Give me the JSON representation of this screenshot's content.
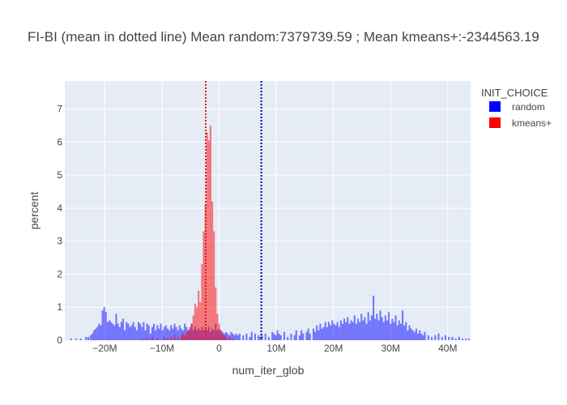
{
  "chart_data": {
    "type": "histogram",
    "title": "FI-BI (mean in dotted line) Mean random:7379739.59 ; Mean kmeans+:-2344563.19",
    "xlabel": "num_iter_glob",
    "ylabel": "percent",
    "xlim": [
      -27000000,
      44000000
    ],
    "ylim": [
      0,
      7.85
    ],
    "bin_width": 300000,
    "x_ticks": [
      {
        "value": -20000000,
        "label": "−20M"
      },
      {
        "value": -10000000,
        "label": "−10M"
      },
      {
        "value": 0,
        "label": "0"
      },
      {
        "value": 10000000,
        "label": "10M"
      },
      {
        "value": 20000000,
        "label": "20M"
      },
      {
        "value": 30000000,
        "label": "30M"
      },
      {
        "value": 40000000,
        "label": "40M"
      }
    ],
    "y_ticks": [
      {
        "value": 0,
        "label": "0"
      },
      {
        "value": 1,
        "label": "1"
      },
      {
        "value": 2,
        "label": "2"
      },
      {
        "value": 3,
        "label": "3"
      },
      {
        "value": 4,
        "label": "4"
      },
      {
        "value": 5,
        "label": "5"
      },
      {
        "value": 6,
        "label": "6"
      },
      {
        "value": 7,
        "label": "7"
      }
    ],
    "legend": {
      "title": "INIT_CHOICE",
      "placement": "top-right"
    },
    "colors": {
      "plot_background": "#e5ecf6",
      "grid": "#ffffff",
      "text": "#444444"
    },
    "series": [
      {
        "name": "random",
        "color": "#0000ff",
        "opacity": 0.5,
        "mean": 7379739.59,
        "points": [
          [
            -25900000,
            0.05
          ],
          [
            -25000000,
            0.05
          ],
          [
            -24200000,
            0.05
          ],
          [
            -23300000,
            0.1
          ],
          [
            -22900000,
            0.1
          ],
          [
            -22500000,
            0.15
          ],
          [
            -22200000,
            0.2
          ],
          [
            -21900000,
            0.3
          ],
          [
            -21600000,
            0.35
          ],
          [
            -21300000,
            0.4
          ],
          [
            -21000000,
            0.5
          ],
          [
            -20700000,
            0.45
          ],
          [
            -20400000,
            0.9
          ],
          [
            -20100000,
            1.0
          ],
          [
            -19800000,
            0.85
          ],
          [
            -19500000,
            0.55
          ],
          [
            -19200000,
            0.6
          ],
          [
            -18900000,
            0.55
          ],
          [
            -18600000,
            0.5
          ],
          [
            -18300000,
            0.45
          ],
          [
            -18000000,
            0.8
          ],
          [
            -17700000,
            0.5
          ],
          [
            -17400000,
            0.4
          ],
          [
            -17100000,
            0.55
          ],
          [
            -16800000,
            0.65
          ],
          [
            -16500000,
            0.3
          ],
          [
            -16200000,
            0.55
          ],
          [
            -15900000,
            0.5
          ],
          [
            -15600000,
            0.4
          ],
          [
            -15300000,
            0.45
          ],
          [
            -15000000,
            0.55
          ],
          [
            -14700000,
            0.4
          ],
          [
            -14400000,
            0.3
          ],
          [
            -14100000,
            0.55
          ],
          [
            -13800000,
            0.5
          ],
          [
            -13500000,
            0.4
          ],
          [
            -13200000,
            0.55
          ],
          [
            -12900000,
            0.3
          ],
          [
            -12600000,
            0.5
          ],
          [
            -12300000,
            0.45
          ],
          [
            -12000000,
            0.2
          ],
          [
            -11700000,
            0.4
          ],
          [
            -11400000,
            0.5
          ],
          [
            -11100000,
            0.3
          ],
          [
            -10800000,
            0.45
          ],
          [
            -10500000,
            0.35
          ],
          [
            -10200000,
            0.5
          ],
          [
            -9900000,
            0.3
          ],
          [
            -9600000,
            0.4
          ],
          [
            -9300000,
            0.45
          ],
          [
            -9000000,
            0.35
          ],
          [
            -8700000,
            0.3
          ],
          [
            -8400000,
            0.45
          ],
          [
            -8100000,
            0.35
          ],
          [
            -7800000,
            0.5
          ],
          [
            -7500000,
            0.4
          ],
          [
            -7200000,
            0.3
          ],
          [
            -6900000,
            0.45
          ],
          [
            -6600000,
            0.35
          ],
          [
            -6300000,
            0.3
          ],
          [
            -6000000,
            0.5
          ],
          [
            -5700000,
            0.4
          ],
          [
            -5400000,
            0.3
          ],
          [
            -5100000,
            0.35
          ],
          [
            -4800000,
            0.5
          ],
          [
            -4500000,
            0.3
          ],
          [
            -4200000,
            0.4
          ],
          [
            -3900000,
            0.3
          ],
          [
            -3600000,
            0.35
          ],
          [
            -3300000,
            0.3
          ],
          [
            -3000000,
            0.4
          ],
          [
            -2700000,
            0.3
          ],
          [
            -2400000,
            0.35
          ],
          [
            -2100000,
            0.3
          ],
          [
            -1800000,
            0.4
          ],
          [
            -1500000,
            0.25
          ],
          [
            -1200000,
            0.35
          ],
          [
            -900000,
            0.3
          ],
          [
            -600000,
            0.5
          ],
          [
            -300000,
            0.3
          ],
          [
            0,
            0.35
          ],
          [
            300000,
            0.3
          ],
          [
            600000,
            0.25
          ],
          [
            900000,
            0.2
          ],
          [
            1200000,
            0.25
          ],
          [
            1500000,
            0.2
          ],
          [
            1800000,
            0.15
          ],
          [
            2100000,
            0.25
          ],
          [
            2400000,
            0.2
          ],
          [
            2700000,
            0.15
          ],
          [
            3000000,
            0.2
          ],
          [
            3300000,
            0.15
          ],
          [
            3600000,
            0.2
          ],
          [
            4200000,
            0.15
          ],
          [
            4800000,
            0.2
          ],
          [
            5400000,
            0.1
          ],
          [
            5700000,
            0.25
          ],
          [
            6300000,
            0.2
          ],
          [
            6900000,
            0.15
          ],
          [
            7200000,
            0.1
          ],
          [
            7500000,
            0.15
          ],
          [
            8100000,
            0.2
          ],
          [
            8700000,
            0.1
          ],
          [
            9300000,
            0.25
          ],
          [
            9600000,
            0.2
          ],
          [
            9900000,
            0.15
          ],
          [
            10200000,
            0.3
          ],
          [
            10500000,
            0.2
          ],
          [
            10800000,
            0.15
          ],
          [
            11400000,
            0.25
          ],
          [
            12000000,
            0.1
          ],
          [
            12600000,
            0.2
          ],
          [
            13200000,
            0.15
          ],
          [
            13500000,
            0.3
          ],
          [
            14100000,
            0.15
          ],
          [
            14400000,
            0.3
          ],
          [
            14700000,
            0.2
          ],
          [
            15300000,
            0.25
          ],
          [
            15600000,
            0.35
          ],
          [
            15900000,
            0.2
          ],
          [
            16500000,
            0.35
          ],
          [
            16800000,
            0.25
          ],
          [
            17100000,
            0.45
          ],
          [
            17400000,
            0.3
          ],
          [
            17700000,
            0.5
          ],
          [
            18000000,
            0.35
          ],
          [
            18300000,
            0.4
          ],
          [
            18600000,
            0.55
          ],
          [
            18900000,
            0.4
          ],
          [
            19200000,
            0.55
          ],
          [
            19500000,
            0.45
          ],
          [
            19800000,
            0.6
          ],
          [
            20100000,
            0.5
          ],
          [
            20400000,
            0.45
          ],
          [
            20700000,
            0.55
          ],
          [
            21000000,
            0.4
          ],
          [
            21300000,
            0.6
          ],
          [
            21600000,
            0.5
          ],
          [
            21900000,
            0.65
          ],
          [
            22200000,
            0.55
          ],
          [
            22500000,
            0.7
          ],
          [
            22800000,
            0.5
          ],
          [
            23100000,
            0.6
          ],
          [
            23400000,
            0.55
          ],
          [
            23700000,
            0.75
          ],
          [
            24000000,
            0.5
          ],
          [
            24300000,
            0.65
          ],
          [
            24600000,
            0.55
          ],
          [
            24900000,
            0.8
          ],
          [
            25200000,
            0.6
          ],
          [
            25500000,
            0.7
          ],
          [
            25800000,
            0.5
          ],
          [
            26100000,
            0.85
          ],
          [
            26400000,
            0.6
          ],
          [
            26700000,
            0.75
          ],
          [
            27000000,
            1.35
          ],
          [
            27300000,
            0.65
          ],
          [
            27600000,
            0.8
          ],
          [
            27900000,
            0.6
          ],
          [
            28200000,
            0.9
          ],
          [
            28500000,
            0.7
          ],
          [
            28800000,
            0.55
          ],
          [
            29100000,
            0.75
          ],
          [
            29400000,
            0.6
          ],
          [
            29700000,
            0.85
          ],
          [
            30000000,
            0.5
          ],
          [
            30300000,
            0.65
          ],
          [
            30600000,
            0.55
          ],
          [
            30900000,
            0.75
          ],
          [
            31200000,
            0.45
          ],
          [
            31500000,
            0.6
          ],
          [
            31800000,
            0.5
          ],
          [
            32100000,
            0.9
          ],
          [
            32400000,
            0.45
          ],
          [
            32700000,
            0.55
          ],
          [
            33000000,
            0.3
          ],
          [
            33300000,
            0.45
          ],
          [
            33600000,
            0.35
          ],
          [
            33900000,
            0.3
          ],
          [
            34200000,
            0.25
          ],
          [
            34500000,
            0.35
          ],
          [
            34800000,
            0.2
          ],
          [
            35100000,
            0.3
          ],
          [
            35400000,
            0.2
          ],
          [
            35700000,
            0.15
          ],
          [
            36000000,
            0.25
          ],
          [
            36600000,
            0.15
          ],
          [
            37200000,
            0.1
          ],
          [
            37800000,
            0.15
          ],
          [
            38400000,
            0.2
          ],
          [
            39000000,
            0.1
          ],
          [
            39600000,
            0.15
          ],
          [
            40200000,
            0.1
          ],
          [
            40800000,
            0.1
          ],
          [
            41400000,
            0.05
          ],
          [
            42000000,
            0.1
          ],
          [
            42600000,
            0.05
          ],
          [
            43200000,
            0.05
          ],
          [
            43700000,
            0.05
          ]
        ]
      },
      {
        "name": "kmeans+",
        "color": "#ff0000",
        "opacity": 0.5,
        "mean": -2344563.19,
        "points": [
          [
            -13500000,
            0.05
          ],
          [
            -12600000,
            0.05
          ],
          [
            -11700000,
            0.1
          ],
          [
            -10800000,
            0.05
          ],
          [
            -9600000,
            0.1
          ],
          [
            -9000000,
            0.05
          ],
          [
            -8400000,
            0.1
          ],
          [
            -7800000,
            0.15
          ],
          [
            -7200000,
            0.1
          ],
          [
            -6600000,
            0.15
          ],
          [
            -6300000,
            0.2
          ],
          [
            -6000000,
            0.15
          ],
          [
            -5700000,
            0.25
          ],
          [
            -5400000,
            0.3
          ],
          [
            -5100000,
            0.4
          ],
          [
            -4800000,
            0.5
          ],
          [
            -4500000,
            0.75
          ],
          [
            -4200000,
            1.1
          ],
          [
            -3900000,
            1.0
          ],
          [
            -3600000,
            1.5
          ],
          [
            -3300000,
            1.15
          ],
          [
            -3000000,
            2.3
          ],
          [
            -2700000,
            3.3
          ],
          [
            -2400000,
            4.1
          ],
          [
            -2100000,
            6.3
          ],
          [
            -1800000,
            6.05
          ],
          [
            -1500000,
            6.5
          ],
          [
            -1200000,
            4.2
          ],
          [
            -900000,
            3.3
          ],
          [
            -600000,
            1.6
          ],
          [
            -300000,
            0.8
          ],
          [
            0,
            0.5
          ],
          [
            300000,
            0.3
          ],
          [
            600000,
            0.2
          ],
          [
            900000,
            0.15
          ],
          [
            1200000,
            0.1
          ],
          [
            1800000,
            0.1
          ],
          [
            2400000,
            0.05
          ]
        ]
      }
    ]
  }
}
